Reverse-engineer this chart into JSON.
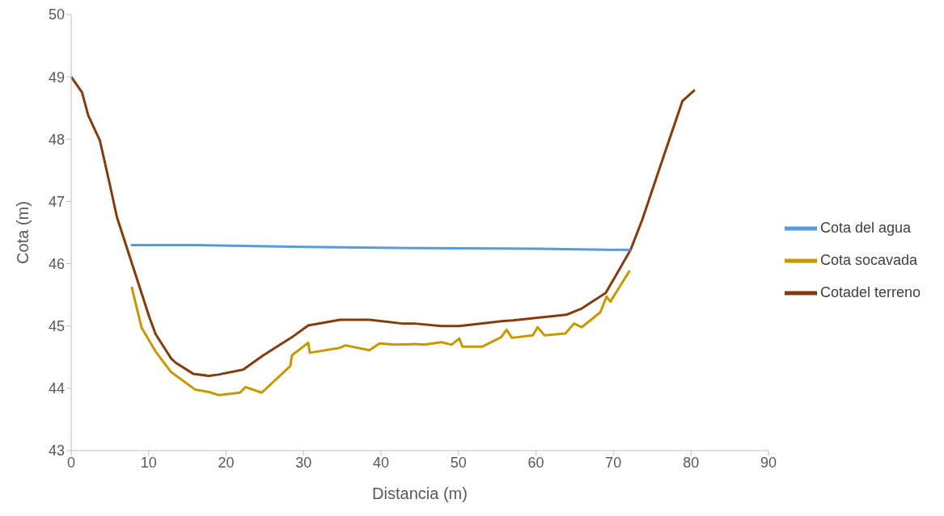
{
  "chart_data": {
    "type": "line",
    "xlabel": "Distancia (m)",
    "ylabel": "Cota (m)",
    "xlim": [
      0,
      90
    ],
    "xticks": [
      0,
      10,
      20,
      30,
      40,
      50,
      60,
      70,
      80,
      90
    ],
    "ylim": [
      43,
      50
    ],
    "yticks": [
      43,
      44,
      45,
      46,
      47,
      48,
      49,
      50
    ],
    "grid": false,
    "legend": "right",
    "marker": "none",
    "line_style": "solid",
    "series": [
      {
        "name": "Cotadel terreno",
        "color": "#843c0c",
        "x": [
          0,
          1.4,
          2.2,
          3.7,
          4.9,
          5.9,
          10.1,
          10.9,
          12.9,
          13.5,
          15.8,
          17.8,
          19.0,
          22.2,
          24.8,
          28.5,
          30.6,
          34.7,
          38.5,
          42.7,
          44.3,
          47.8,
          50.1,
          55.8,
          57.0,
          63.9,
          65.9,
          69.0,
          72.2,
          73.7,
          76.6,
          78.9,
          80.5
        ],
        "values": [
          49.0,
          48.75,
          48.38,
          47.98,
          47.32,
          46.75,
          45.14,
          44.87,
          44.48,
          44.41,
          44.23,
          44.2,
          44.22,
          44.3,
          44.53,
          44.82,
          45.01,
          45.1,
          45.1,
          45.04,
          45.04,
          45.0,
          45.0,
          45.08,
          45.09,
          45.18,
          45.28,
          45.53,
          46.22,
          46.7,
          47.77,
          48.61,
          48.79
        ]
      },
      {
        "name": "Cota del agua",
        "color": "#5b9bd5",
        "x": [
          7.7,
          16,
          30,
          45,
          60,
          72.2
        ],
        "values": [
          46.3,
          46.3,
          46.27,
          46.25,
          46.24,
          46.22
        ]
      },
      {
        "name": "Cota socavada",
        "color": "#c89800",
        "x": [
          7.8,
          9.1,
          10.9,
          12.9,
          16.0,
          17.8,
          19.1,
          21.8,
          22.5,
          24.6,
          28.3,
          28.5,
          30.6,
          30.8,
          34.7,
          35.4,
          38.5,
          39.8,
          41.7,
          44.3,
          45.6,
          47.8,
          49.1,
          50.1,
          50.5,
          53.1,
          55.5,
          56.2,
          56.9,
          59.6,
          60.2,
          61.1,
          63.8,
          64.9,
          65.9,
          68.3,
          69.1,
          69.6,
          72.1
        ],
        "values": [
          45.63,
          44.97,
          44.59,
          44.26,
          43.98,
          43.94,
          43.89,
          43.93,
          44.02,
          43.93,
          44.36,
          44.53,
          44.73,
          44.57,
          44.65,
          44.69,
          44.61,
          44.72,
          44.7,
          44.71,
          44.7,
          44.74,
          44.7,
          44.8,
          44.67,
          44.67,
          44.82,
          44.94,
          44.81,
          44.85,
          44.98,
          44.85,
          44.88,
          45.04,
          44.98,
          45.22,
          45.47,
          45.39,
          45.89
        ]
      }
    ]
  }
}
